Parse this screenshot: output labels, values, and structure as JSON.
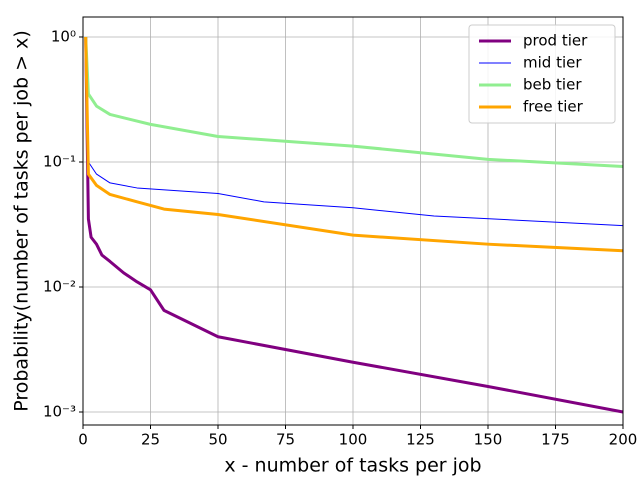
{
  "chart_data": {
    "type": "line",
    "xlabel": "x - number of tasks per job",
    "ylabel": "Probability(number of tasks per job  > x)",
    "xlim": [
      0,
      200
    ],
    "xticks": [
      0,
      25,
      50,
      75,
      100,
      125,
      150,
      175,
      200
    ],
    "ylim": [
      0.000787,
      1.445
    ],
    "log_y": true,
    "yticks": [
      {
        "value": 1,
        "label": "10⁰"
      },
      {
        "value": 0.1,
        "label": "10⁻¹"
      },
      {
        "value": 0.01,
        "label": "10⁻²"
      },
      {
        "value": 0.001,
        "label": "10⁻³"
      }
    ],
    "grid": true,
    "legend": "upper right",
    "series": [
      {
        "name": "prod tier",
        "color": "#800080",
        "width": 3,
        "x": [
          1,
          2,
          3,
          5,
          7,
          10,
          15,
          20,
          25,
          30,
          50,
          100,
          150,
          200
        ],
        "values": [
          1,
          0.035,
          0.025,
          0.022,
          0.018,
          0.016,
          0.013,
          0.011,
          0.0095,
          0.0065,
          0.004,
          0.0025,
          0.0016,
          0.001
        ]
      },
      {
        "name": "mid tier",
        "color": "#0000ff",
        "width": 1,
        "x": [
          1,
          2,
          5,
          10,
          20,
          50,
          67,
          100,
          130,
          200
        ],
        "values": [
          1,
          0.1,
          0.08,
          0.068,
          0.062,
          0.056,
          0.048,
          0.043,
          0.037,
          0.031
        ]
      },
      {
        "name": "beb tier",
        "color": "#90ee90",
        "width": 3,
        "x": [
          1,
          2,
          5,
          10,
          25,
          50,
          100,
          150,
          200
        ],
        "values": [
          1,
          0.35,
          0.28,
          0.24,
          0.2,
          0.16,
          0.134,
          0.105,
          0.092
        ]
      },
      {
        "name": "free tier",
        "color": "#ffa500",
        "width": 3,
        "x": [
          1,
          2,
          5,
          10,
          20,
          30,
          50,
          100,
          150,
          200
        ],
        "values": [
          1,
          0.08,
          0.065,
          0.055,
          0.048,
          0.042,
          0.038,
          0.026,
          0.022,
          0.0195
        ]
      }
    ]
  }
}
